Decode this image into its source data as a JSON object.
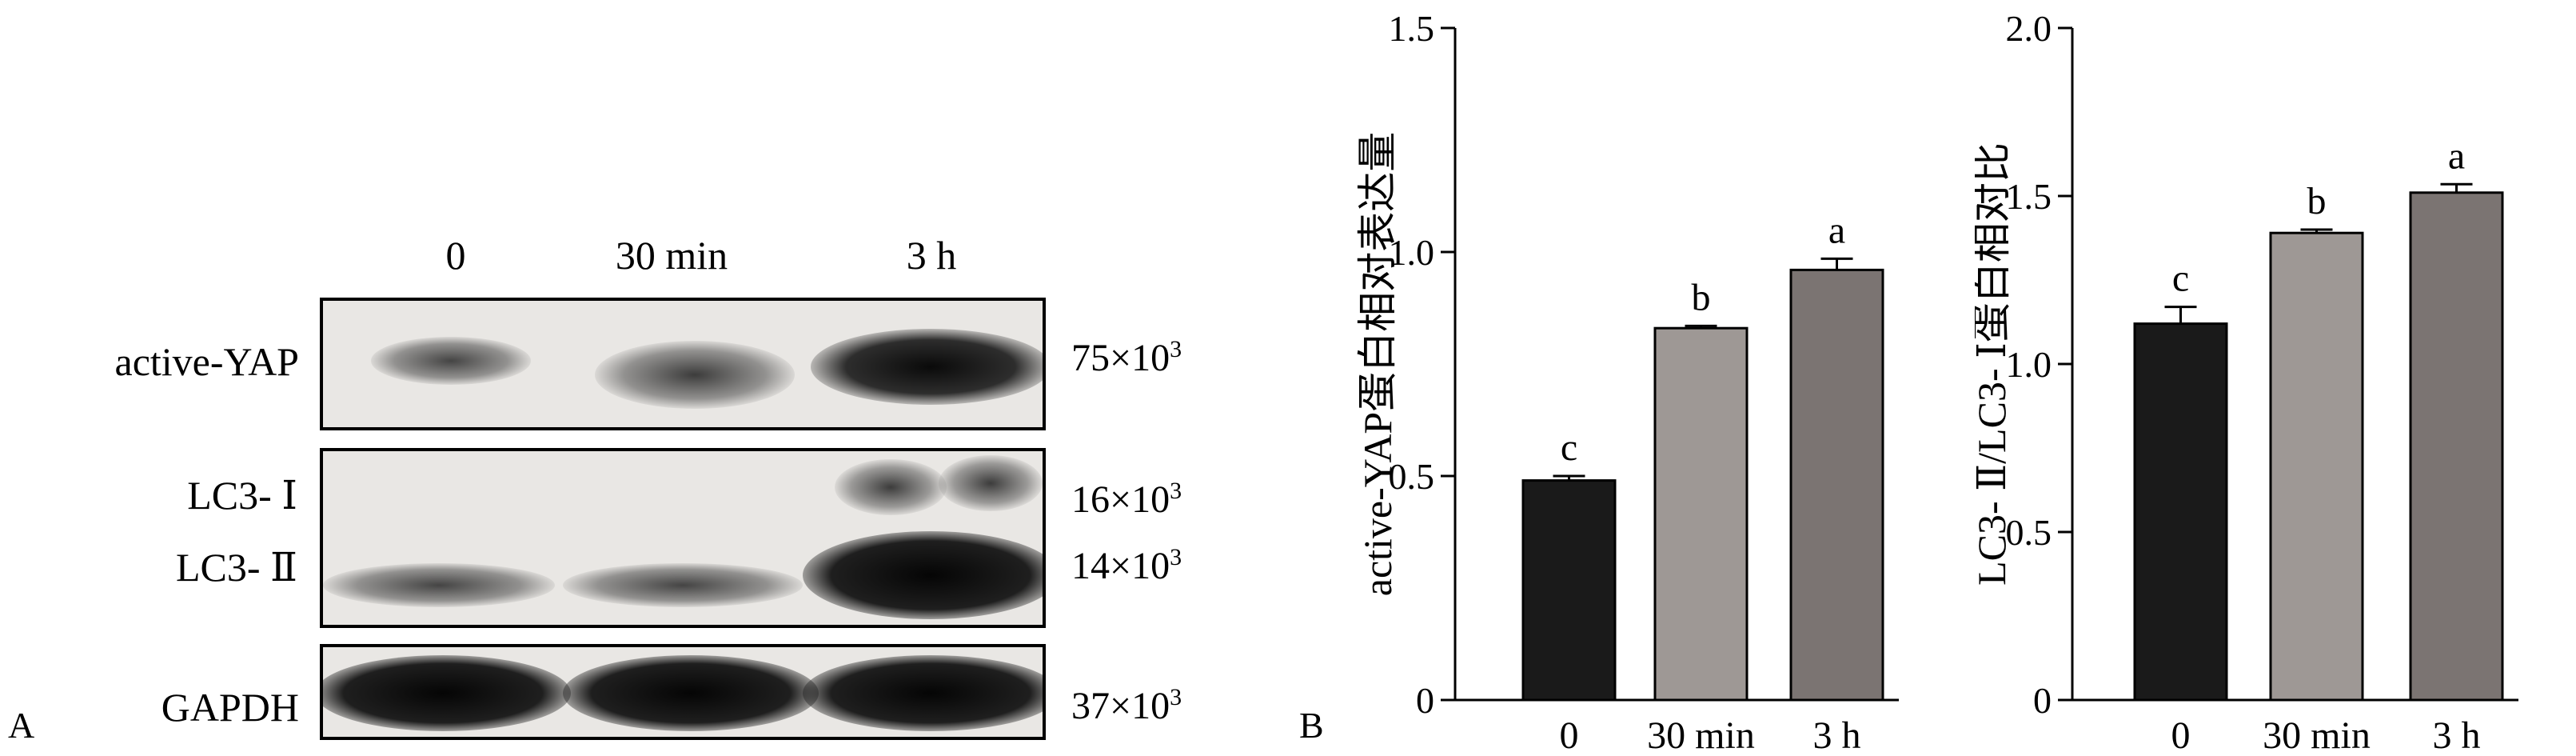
{
  "panel_a": {
    "letter": "A",
    "lanes": [
      "0",
      "30 min",
      "3 h"
    ],
    "rows": [
      {
        "label": "active-YAP",
        "mw": "75×10",
        "mw_exp": "3"
      },
      {
        "label": "LC3- Ⅰ",
        "mw": "16×10",
        "mw_exp": "3"
      },
      {
        "label": "LC3- Ⅱ",
        "mw": "14×10",
        "mw_exp": "3"
      },
      {
        "label": "GAPDH",
        "mw": "37×10",
        "mw_exp": "3"
      }
    ]
  },
  "panel_b": {
    "letter": "B"
  },
  "chart_data": [
    {
      "type": "bar",
      "categories": [
        "0",
        "30 min",
        "3 h"
      ],
      "values": [
        0.49,
        0.83,
        0.96
      ],
      "errors": [
        0.01,
        0.005,
        0.025
      ],
      "significance": [
        "c",
        "b",
        "a"
      ],
      "colors": [
        "#1a1a1a",
        "#9e9895",
        "#7b7472"
      ],
      "ylabel": "active-YAP蛋白相对表达量",
      "ylim": [
        0,
        1.5
      ],
      "yticks": [
        "0",
        "0.5",
        "1.0",
        "1.5"
      ]
    },
    {
      "type": "bar",
      "categories": [
        "0",
        "30 min",
        "3 h"
      ],
      "values": [
        1.12,
        1.39,
        1.51
      ],
      "errors": [
        0.05,
        0.01,
        0.025
      ],
      "significance": [
        "c",
        "b",
        "a"
      ],
      "colors": [
        "#1a1a1a",
        "#9e9895",
        "#7b7472"
      ],
      "ylabel": "LC3- Ⅱ/LC3- Ⅰ蛋白相对比",
      "ylim": [
        0,
        2.0
      ],
      "yticks": [
        "0",
        "0.5",
        "1.0",
        "1.5",
        "2.0"
      ]
    }
  ]
}
